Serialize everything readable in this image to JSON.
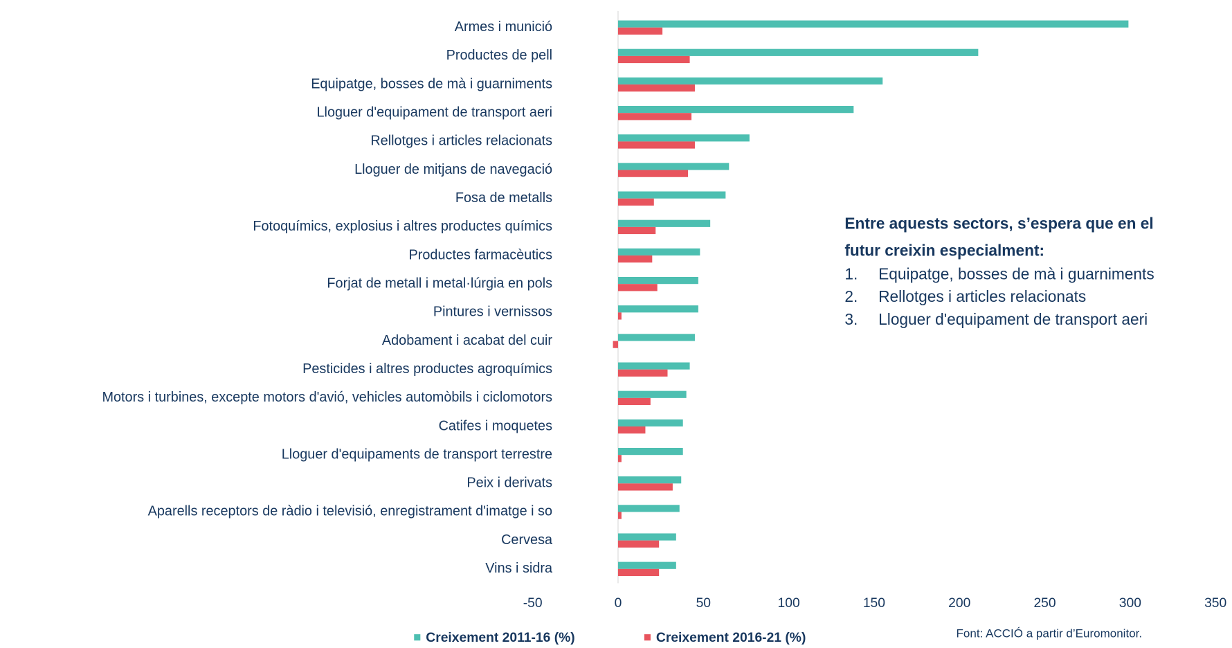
{
  "chart_data": {
    "type": "hbar",
    "categories": [
      "Armes i munició",
      "Productes de pell",
      "Equipatge, bosses de mà i guarniments",
      "Lloguer d'equipament de transport aeri",
      "Rellotges i articles relacionats",
      "Lloguer de mitjans de navegació",
      "Fosa de metalls",
      "Fotoquímics, explosius i altres productes químics",
      "Productes farmacèutics",
      "Forjat de metall i metal·lúrgia en pols",
      "Pintures i vernissos",
      "Adobament i acabat del cuir",
      "Pesticides i altres productes agroquímics",
      "Motors i turbines, excepte motors d'avió, vehicles automòbils i ciclomotors",
      "Catifes i moquetes",
      "Lloguer d'equipaments de transport terrestre",
      "Peix i derivats",
      "Aparells receptors de ràdio i televisió, enregistrament d'imatge i so",
      "Cervesa",
      "Vins i sidra"
    ],
    "series": [
      {
        "name": "Creixement 2011-16 (%)",
        "color": "#4dbfb1",
        "values": [
          299,
          211,
          155,
          138,
          77,
          65,
          63,
          54,
          48,
          47,
          47,
          45,
          42,
          40,
          38,
          38,
          37,
          36,
          34,
          34
        ]
      },
      {
        "name": "Creixement 2016-21 (%)",
        "color": "#e8545d",
        "values": [
          26,
          42,
          45,
          43,
          45,
          41,
          21,
          22,
          20,
          23,
          2,
          -3,
          29,
          19,
          16,
          2,
          32,
          2,
          24,
          24
        ]
      }
    ],
    "xlim": [
      -50,
      350
    ],
    "xticks": [
      -50,
      0,
      50,
      100,
      150,
      200,
      250,
      300,
      350
    ],
    "annotation": {
      "title": [
        "Entre aquests sectors, s’espera que en el",
        "futur creixin especialment:"
      ],
      "items": [
        {
          "number": "1.",
          "text": "Equipatge, bosses de mà i guarniments"
        },
        {
          "number": "2.",
          "text": "Rellotges i articles relacionats"
        },
        {
          "number": "3.",
          "text": "Lloguer d'equipament de transport aeri"
        }
      ]
    },
    "source": "Font: ACCIÓ a partir d’Euromonitor."
  }
}
